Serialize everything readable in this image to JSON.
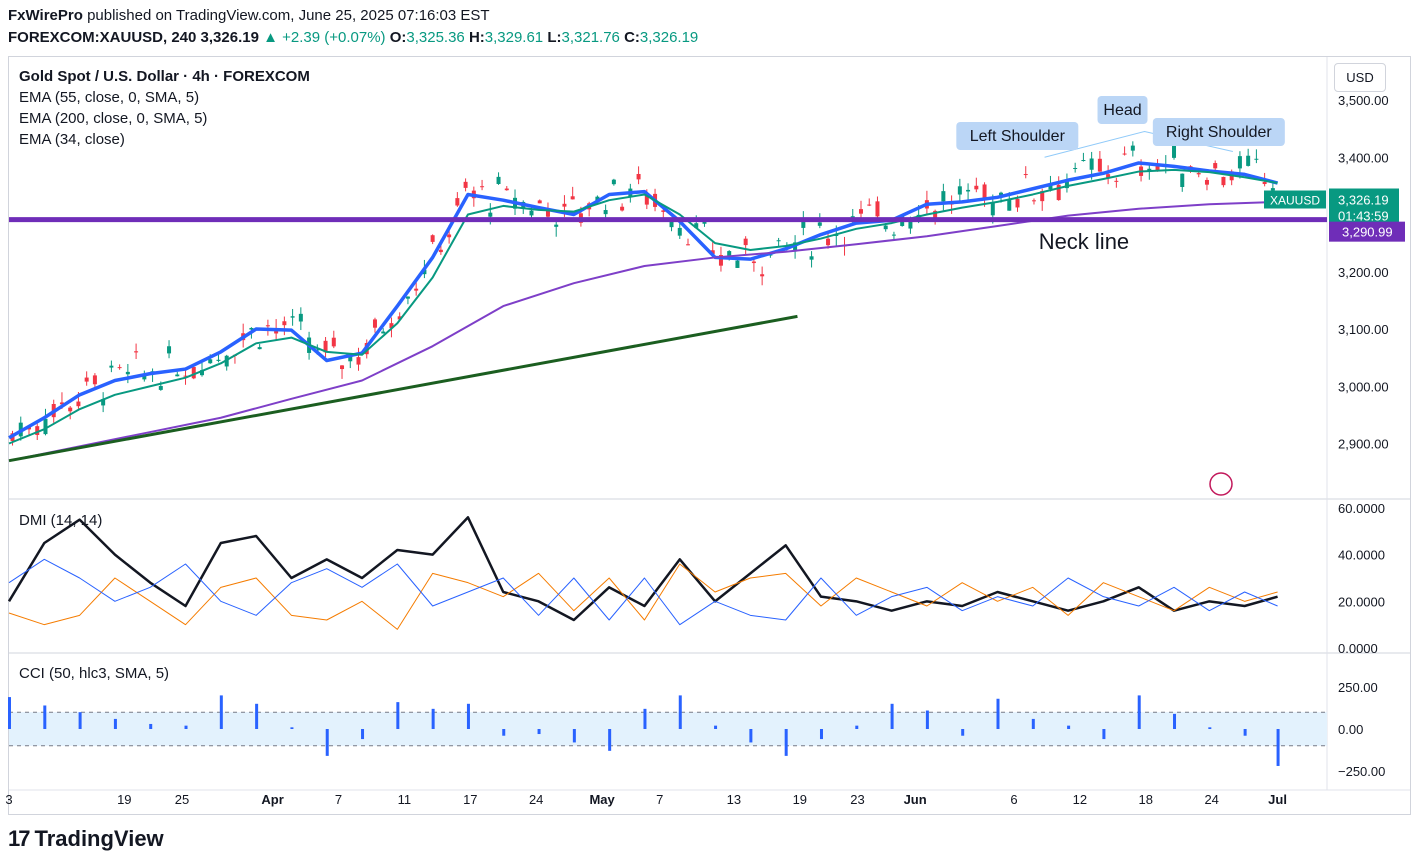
{
  "header": {
    "publisher": "FxWirePro",
    "published_text": "published on TradingView.com, June 25, 2025 07:16:03 EST",
    "symbol": "FOREXCOM:XAUUSD, 240",
    "last": "3,326.19",
    "change": "▲ +2.39 (+0.07%)",
    "o_label": "O:",
    "o": "3,325.36",
    "h_label": "H:",
    "h": "3,329.61",
    "l_label": "L:",
    "l": "3,321.76",
    "c_label": "C:",
    "c": "3,326.19"
  },
  "legend": {
    "title": "Gold Spot / U.S. Dollar · 4h · FOREXCOM",
    "ema1": "EMA (55, close, 0, SMA, 5)",
    "ema2": "EMA (200, close, 0, SMA, 5)",
    "ema3": "EMA (34, close)"
  },
  "currency_button": "USD",
  "annotations": {
    "left_shoulder": "Left Shoulder",
    "head": "Head",
    "right_shoulder": "Right Shoulder",
    "neck_line": "Neck line"
  },
  "price_tags": {
    "symbol": "XAUUSD",
    "price": "3,326.19",
    "countdown": "01:43:59",
    "neckline_price": "3,290.99"
  },
  "footer": {
    "brand": "TradingView",
    "logo": "17"
  },
  "colors": {
    "ema34": "#2962ff",
    "ema55": "#089981",
    "ema200": "#7e3fc8",
    "neckline": "#6f2db8",
    "trend": "#1b5e20",
    "dmi_adx": "#131722",
    "dmi_plus": "#f57c00",
    "dmi_minus": "#2962ff",
    "cci": "#2962ff",
    "up": "#089981",
    "down": "#f23645"
  },
  "chart_data": [
    {
      "type": "line",
      "title": "Gold Spot / U.S. Dollar · 4h · FOREXCOM",
      "x_ticks": [
        "3",
        "19",
        "25",
        "Apr",
        "7",
        "11",
        "17",
        "24",
        "May",
        "7",
        "13",
        "19",
        "23",
        "Jun",
        "6",
        "12",
        "18",
        "24",
        "Jul"
      ],
      "y_ticks": [
        "3,500.00",
        "3,400.00",
        "3,200.00",
        "3,100.00",
        "3,000.00",
        "2,900.00"
      ],
      "ylim": [
        2850,
        3530
      ],
      "x_range_days": [
        0,
        112
      ],
      "series": [
        {
          "name": "EMA (34, close)",
          "x": [
            0,
            3,
            6,
            9,
            12,
            15,
            18,
            21,
            24,
            27,
            30,
            33,
            36,
            39,
            42,
            45,
            48,
            51,
            54,
            57,
            60,
            63,
            66,
            69,
            72,
            75,
            78,
            81,
            84,
            87,
            90,
            93,
            96,
            99,
            102,
            105,
            107.8
          ],
          "values": [
            2910,
            2945,
            2985,
            3010,
            3022,
            3030,
            3060,
            3100,
            3098,
            3045,
            3058,
            3140,
            3225,
            3335,
            3325,
            3312,
            3300,
            3335,
            3340,
            3288,
            3225,
            3222,
            3240,
            3265,
            3285,
            3290,
            3318,
            3322,
            3330,
            3345,
            3360,
            3372,
            3390,
            3384,
            3376,
            3370,
            3355
          ]
        },
        {
          "name": "EMA (55, close, 0, SMA, 5)",
          "x": [
            0,
            3,
            6,
            9,
            12,
            15,
            18,
            21,
            24,
            27,
            30,
            33,
            36,
            39,
            42,
            45,
            48,
            51,
            54,
            57,
            60,
            63,
            66,
            69,
            72,
            75,
            78,
            81,
            84,
            87,
            90,
            93,
            96,
            99,
            102,
            105,
            107.8
          ],
          "values": [
            2900,
            2925,
            2960,
            2985,
            3000,
            3015,
            3040,
            3075,
            3085,
            3060,
            3055,
            3110,
            3190,
            3300,
            3315,
            3308,
            3305,
            3325,
            3335,
            3300,
            3250,
            3238,
            3245,
            3258,
            3275,
            3285,
            3300,
            3312,
            3322,
            3335,
            3350,
            3362,
            3375,
            3378,
            3374,
            3365,
            3355
          ]
        },
        {
          "name": "EMA (200, close, 0, SMA, 5)",
          "x": [
            0,
            6,
            12,
            18,
            24,
            30,
            36,
            42,
            48,
            54,
            60,
            66,
            72,
            78,
            84,
            90,
            96,
            102,
            107.8
          ],
          "values": [
            2870,
            2895,
            2920,
            2945,
            2978,
            3010,
            3070,
            3140,
            3180,
            3210,
            3225,
            3235,
            3248,
            3262,
            3280,
            3298,
            3310,
            3318,
            3322
          ]
        },
        {
          "name": "Neck line",
          "x": [
            0,
            112
          ],
          "values": [
            3290.99,
            3290.99
          ]
        },
        {
          "name": "Trend line",
          "x": [
            0,
            67
          ],
          "values": [
            2870,
            3122
          ]
        }
      ]
    },
    {
      "type": "line",
      "title": "DMI (14, 14)",
      "y_ticks": [
        "60.0000",
        "40.0000",
        "20.0000",
        "0.0000"
      ],
      "ylim": [
        0,
        60
      ],
      "series": [
        {
          "name": "ADX",
          "x": [
            0,
            3,
            6,
            9,
            12,
            15,
            18,
            21,
            24,
            27,
            30,
            33,
            36,
            39,
            42,
            45,
            48,
            51,
            54,
            57,
            60,
            63,
            66,
            69,
            72,
            75,
            78,
            81,
            84,
            87,
            90,
            93,
            96,
            99,
            102,
            105,
            107.8
          ],
          "values": [
            20,
            45,
            55,
            40,
            28,
            18,
            45,
            48,
            30,
            38,
            30,
            42,
            40,
            56,
            24,
            20,
            12,
            26,
            18,
            38,
            20,
            32,
            44,
            22,
            20,
            16,
            20,
            18,
            24,
            20,
            16,
            20,
            26,
            16,
            20,
            18,
            22
          ]
        },
        {
          "name": "+DI",
          "x": [
            0,
            3,
            6,
            9,
            12,
            15,
            18,
            21,
            24,
            27,
            30,
            33,
            36,
            39,
            42,
            45,
            48,
            51,
            54,
            57,
            60,
            63,
            66,
            69,
            72,
            75,
            78,
            81,
            84,
            87,
            90,
            93,
            96,
            99,
            102,
            105,
            107.8
          ],
          "values": [
            15,
            10,
            14,
            30,
            20,
            10,
            26,
            30,
            14,
            12,
            20,
            8,
            32,
            28,
            22,
            32,
            16,
            30,
            12,
            36,
            24,
            30,
            32,
            18,
            30,
            24,
            18,
            28,
            20,
            26,
            14,
            28,
            22,
            16,
            26,
            20,
            24
          ]
        },
        {
          "name": "-DI",
          "x": [
            0,
            3,
            6,
            9,
            12,
            15,
            18,
            21,
            24,
            27,
            30,
            33,
            36,
            39,
            42,
            45,
            48,
            51,
            54,
            57,
            60,
            63,
            66,
            69,
            72,
            75,
            78,
            81,
            84,
            87,
            90,
            93,
            96,
            99,
            102,
            105,
            107.8
          ],
          "values": [
            28,
            38,
            30,
            20,
            26,
            36,
            20,
            14,
            28,
            34,
            26,
            36,
            18,
            24,
            30,
            14,
            30,
            12,
            30,
            10,
            20,
            14,
            12,
            30,
            14,
            22,
            26,
            16,
            22,
            18,
            30,
            22,
            18,
            26,
            16,
            24,
            18
          ]
        }
      ]
    },
    {
      "type": "bar",
      "title": "CCI (50, hlc3, SMA, 5)",
      "y_ticks": [
        "250.00",
        "0.00",
        "−250.00"
      ],
      "ylim": [
        -260,
        380
      ],
      "bands": [
        100,
        -100
      ],
      "x": [
        0,
        3,
        6,
        9,
        12,
        15,
        18,
        21,
        24,
        27,
        30,
        33,
        36,
        39,
        42,
        45,
        48,
        51,
        54,
        57,
        60,
        63,
        66,
        69,
        72,
        75,
        78,
        81,
        84,
        87,
        90,
        93,
        96,
        99,
        102,
        105,
        107.8
      ],
      "values": [
        190,
        140,
        100,
        60,
        30,
        20,
        200,
        150,
        10,
        -160,
        -60,
        160,
        120,
        150,
        -40,
        -30,
        -80,
        -130,
        120,
        200,
        20,
        -80,
        -160,
        -60,
        20,
        150,
        110,
        -40,
        180,
        60,
        20,
        -60,
        200,
        90,
        10,
        -40,
        -220
      ]
    }
  ]
}
